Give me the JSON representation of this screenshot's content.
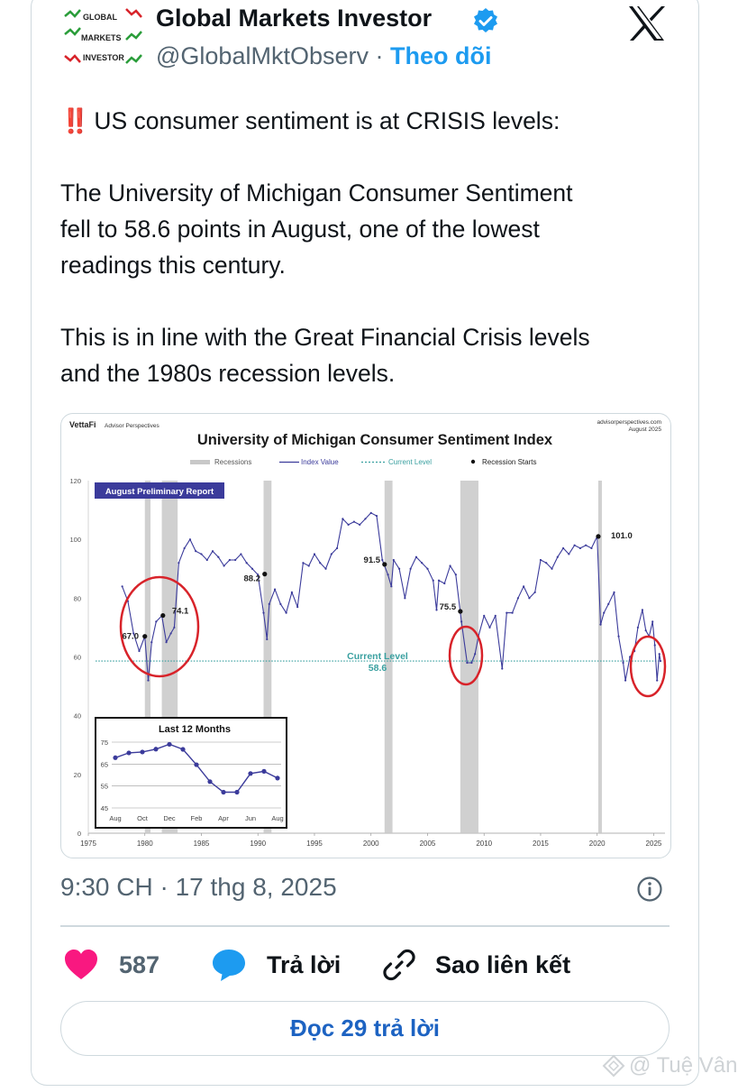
{
  "tweet": {
    "author_name": "Global Markets Investor",
    "handle": "@GlobalMktObserv",
    "separator": "·",
    "follow_label": "Theo dõi",
    "avatar_text": [
      "GLOBAL",
      "MARKETS",
      "INVESTOR"
    ],
    "line1_emoji": "‼️",
    "line1": "US consumer sentiment is at CRISIS levels:",
    "para1": [
      "The University of Michigan Consumer Sentiment",
      "fell to 58.6 points in August, one of the lowest",
      "readings this century."
    ],
    "para2": [
      "This is in line with the Great Financial Crisis levels",
      "and the 1980s recession levels."
    ],
    "timestamp": "9:30 CH · 17 thg 8, 2025"
  },
  "actions": {
    "likes": "587",
    "reply_label": "Trả lời",
    "copy_link_label": "Sao liên kết",
    "read_replies_label": "Đọc 29 trả lời"
  },
  "watermark": "@ Tuệ Vân",
  "colors": {
    "accent": "#1d9bf0",
    "like": "#f91880",
    "series": "#3b3b9b",
    "current": "#3aa0a0",
    "highlight_circle": "#d8232a",
    "recession": "#c8c8c8"
  },
  "chart_data": [
    {
      "type": "line",
      "brand": "VettaFi",
      "brand_sub": "Advisor Perspectives",
      "source": "advisorperspectives.com",
      "source_date": "August 2025",
      "title": "University of Michigan Consumer Sentiment Index",
      "legend": [
        "Recessions",
        "Index Value",
        "Current Level",
        "Recession Starts"
      ],
      "report_label": "August Preliminary Report",
      "ylim": [
        0,
        120
      ],
      "yticks": [
        0,
        20,
        40,
        60,
        80,
        100,
        120
      ],
      "xlim": [
        1975,
        2026
      ],
      "xticks": [
        1975,
        1980,
        1985,
        1990,
        1995,
        2000,
        2005,
        2010,
        2015,
        2020,
        2025
      ],
      "current_level_label": "Current Level",
      "current_level": 58.6,
      "recessions": [
        [
          1980.0,
          1980.5
        ],
        [
          1981.5,
          1982.9
        ],
        [
          1990.5,
          1991.2
        ],
        [
          2001.2,
          2001.9
        ],
        [
          2007.9,
          2009.5
        ],
        [
          2020.1,
          2020.4
        ]
      ],
      "recession_starts": [
        {
          "x": 1980.0,
          "y": 67.0,
          "label": "67.0"
        },
        {
          "x": 1981.6,
          "y": 74.1,
          "label": "74.1"
        },
        {
          "x": 1990.6,
          "y": 88.2,
          "label": "88.2"
        },
        {
          "x": 2001.2,
          "y": 91.5,
          "label": "91.5"
        },
        {
          "x": 2007.9,
          "y": 75.5,
          "label": "75.5"
        },
        {
          "x": 2020.1,
          "y": 101.0,
          "label": "101.0"
        }
      ],
      "series": [
        {
          "name": "Index Value",
          "x": [
            1978.0,
            1978.5,
            1979.0,
            1979.5,
            1980.0,
            1980.3,
            1980.6,
            1981.0,
            1981.5,
            1981.9,
            1982.3,
            1982.6,
            1983.0,
            1983.5,
            1984.0,
            1984.5,
            1985.0,
            1985.5,
            1986.0,
            1986.5,
            1987.0,
            1987.5,
            1988.0,
            1988.5,
            1989.0,
            1989.5,
            1990.0,
            1990.5,
            1990.8,
            1991.0,
            1991.5,
            1992.0,
            1992.5,
            1993.0,
            1993.5,
            1994.0,
            1994.5,
            1995.0,
            1995.5,
            1996.0,
            1996.5,
            1997.0,
            1997.5,
            1998.0,
            1998.5,
            1999.0,
            1999.5,
            2000.0,
            2000.5,
            2001.0,
            2001.5,
            2001.8,
            2002.0,
            2002.5,
            2003.0,
            2003.5,
            2004.0,
            2004.5,
            2005.0,
            2005.5,
            2005.8,
            2006.0,
            2006.5,
            2007.0,
            2007.5,
            2008.0,
            2008.5,
            2008.9,
            2009.2,
            2009.5,
            2010.0,
            2010.5,
            2011.0,
            2011.6,
            2012.0,
            2012.5,
            2013.0,
            2013.5,
            2014.0,
            2014.5,
            2015.0,
            2015.5,
            2016.0,
            2016.5,
            2017.0,
            2017.5,
            2018.0,
            2018.5,
            2019.0,
            2019.5,
            2020.0,
            2020.3,
            2020.6,
            2021.0,
            2021.5,
            2021.9,
            2022.3,
            2022.5,
            2022.9,
            2023.3,
            2023.6,
            2024.0,
            2024.3,
            2024.6,
            2024.9,
            2025.1,
            2025.3,
            2025.5,
            2025.6
          ],
          "values": [
            84,
            79,
            68,
            62,
            67,
            52,
            65,
            72,
            74,
            65,
            68,
            70,
            92,
            97,
            100,
            96,
            95,
            93,
            96,
            94,
            91,
            93,
            93,
            95,
            92,
            90,
            88,
            75,
            66,
            78,
            83,
            78,
            75,
            82,
            77,
            92,
            91,
            95,
            92,
            90,
            95,
            97,
            107,
            105,
            106,
            105,
            107,
            109,
            108,
            93,
            88,
            84,
            93,
            90,
            80,
            90,
            94,
            92,
            90,
            86,
            76,
            86,
            85,
            91,
            88,
            72,
            58,
            58,
            61,
            67,
            74,
            70,
            74,
            56,
            75,
            75,
            80,
            84,
            80,
            82,
            93,
            92,
            90,
            94,
            97,
            95,
            98,
            97,
            98,
            97,
            101,
            71,
            75,
            78,
            82,
            67,
            58,
            52,
            60,
            62,
            70,
            76,
            69,
            67,
            72,
            64,
            52,
            61,
            58.6
          ]
        }
      ]
    },
    {
      "type": "line",
      "title": "Last 12 Months",
      "categories": [
        "Aug",
        "Sep",
        "Oct",
        "Nov",
        "Dec",
        "Jan",
        "Feb",
        "Mar",
        "Apr",
        "May",
        "Jun",
        "Jul",
        "Aug"
      ],
      "xtick_labels": [
        "Aug",
        "Oct",
        "Dec",
        "Feb",
        "Apr",
        "Jun",
        "Aug"
      ],
      "yticks": [
        45,
        55,
        65,
        75
      ],
      "ylim": [
        45,
        75
      ],
      "series": [
        {
          "values": [
            67.9,
            70.1,
            70.5,
            71.8,
            74.0,
            71.7,
            64.7,
            57.0,
            52.2,
            52.2,
            60.7,
            61.7,
            58.6
          ]
        }
      ]
    }
  ]
}
